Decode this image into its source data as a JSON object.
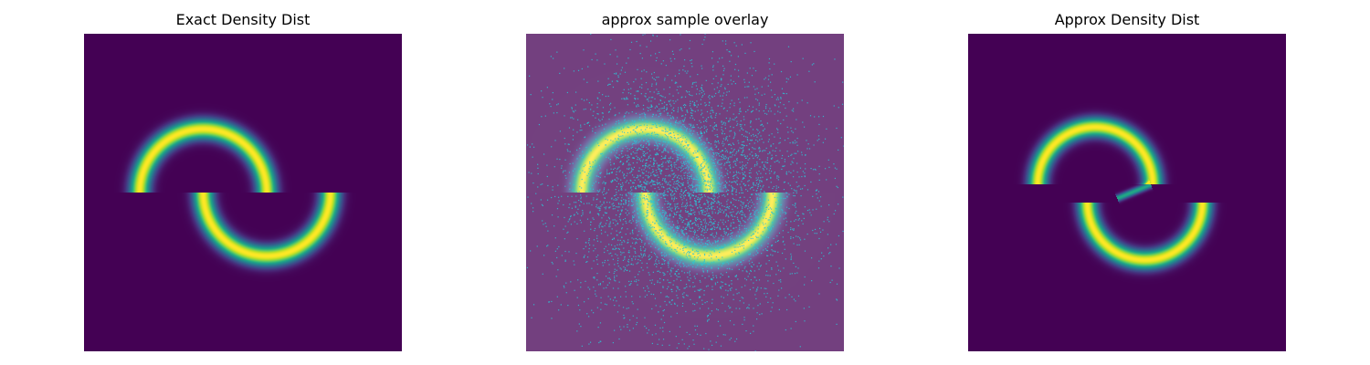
{
  "figure": {
    "background": "#ffffff"
  },
  "chart_data": [
    {
      "type": "heatmap",
      "title": "Exact Density Dist",
      "axes_visible": false,
      "colormap": "viridis",
      "xlim": [
        -4,
        4
      ],
      "ylim": [
        -4,
        4
      ],
      "grid": false,
      "legend": "none",
      "moons": [
        {
          "center": [
            -1.0,
            0.0
          ],
          "radius": 1.6,
          "half": "upper",
          "band_sd": 0.18,
          "peak": 1.0
        },
        {
          "center": [
            0.6,
            0.0
          ],
          "radius": 1.6,
          "half": "lower",
          "band_sd": 0.18,
          "peak": 1.0
        }
      ]
    },
    {
      "type": "scatter",
      "title": "approx sample overlay",
      "axes_visible": false,
      "colormap": "viridis",
      "xlim": [
        -4,
        4
      ],
      "ylim": [
        -4,
        4
      ],
      "grid": false,
      "legend": "none",
      "background_density": "two moons (same as exact)",
      "background_alpha": 0.75,
      "sample_count": 5000,
      "sample_color": "#2bc6d6",
      "sample_spread": 1.6
    },
    {
      "type": "heatmap",
      "title": "Approx Density Dist",
      "axes_visible": false,
      "colormap": "viridis",
      "xlim": [
        -4,
        4
      ],
      "ylim": [
        -4,
        4
      ],
      "grid": false,
      "legend": "none",
      "moons": [
        {
          "center": [
            -0.8,
            0.2
          ],
          "radius": 1.45,
          "half": "upper",
          "band_sd": 0.17,
          "peak": 1.0
        },
        {
          "center": [
            0.45,
            -0.25
          ],
          "radius": 1.45,
          "half": "lower",
          "band_sd": 0.17,
          "peak": 1.0
        }
      ],
      "bridge": {
        "from": [
          0.6,
          0.2
        ],
        "to": [
          -0.25,
          -0.15
        ],
        "peak": 0.6
      }
    }
  ]
}
